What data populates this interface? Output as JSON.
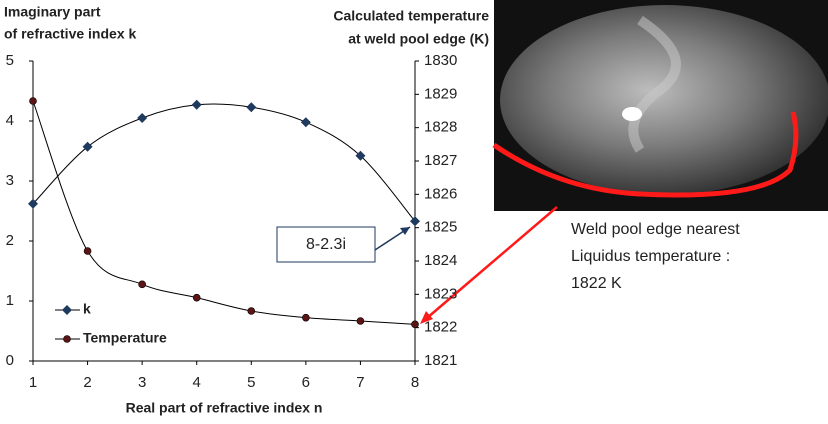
{
  "chart_data": {
    "type": "line",
    "y_label": [
      "Imaginary part",
      "of refractive index k"
    ],
    "y2_label": [
      "Calculated temperature",
      "at weld pool edge (K)"
    ],
    "x_label": "Real part of refractive index n",
    "x": [
      1,
      2,
      3,
      4,
      5,
      6,
      7,
      8
    ],
    "series": [
      {
        "name": "k",
        "color": "#1f3a5f",
        "marker": "diamond",
        "values": [
          2.62,
          3.57,
          4.05,
          4.27,
          4.23,
          3.98,
          3.42,
          2.33
        ]
      },
      {
        "name": "Temperature",
        "color": "#5c1414",
        "marker": "circle",
        "axis": "y2",
        "values": [
          1828.8,
          1824.3,
          1823.3,
          1822.9,
          1822.5,
          1822.3,
          1822.2,
          1822.1
        ]
      }
    ],
    "xlim": [
      1,
      8
    ],
    "xticks": [
      1,
      2,
      3,
      4,
      5,
      6,
      7,
      8
    ],
    "ylim": [
      0,
      5
    ],
    "yticks": [
      0,
      1,
      2,
      3,
      4,
      5
    ],
    "y2lim": [
      1821,
      1830
    ],
    "y2ticks": [
      1821,
      1822,
      1823,
      1824,
      1825,
      1826,
      1827,
      1828,
      1829,
      1830
    ],
    "grid": false,
    "legend": "lower left",
    "annotations": [
      {
        "text": "8-2.3i"
      },
      {
        "text": [
          "Weld pool edge nearest",
          "Liquidus temperature :",
          "1822 K"
        ]
      }
    ]
  }
}
